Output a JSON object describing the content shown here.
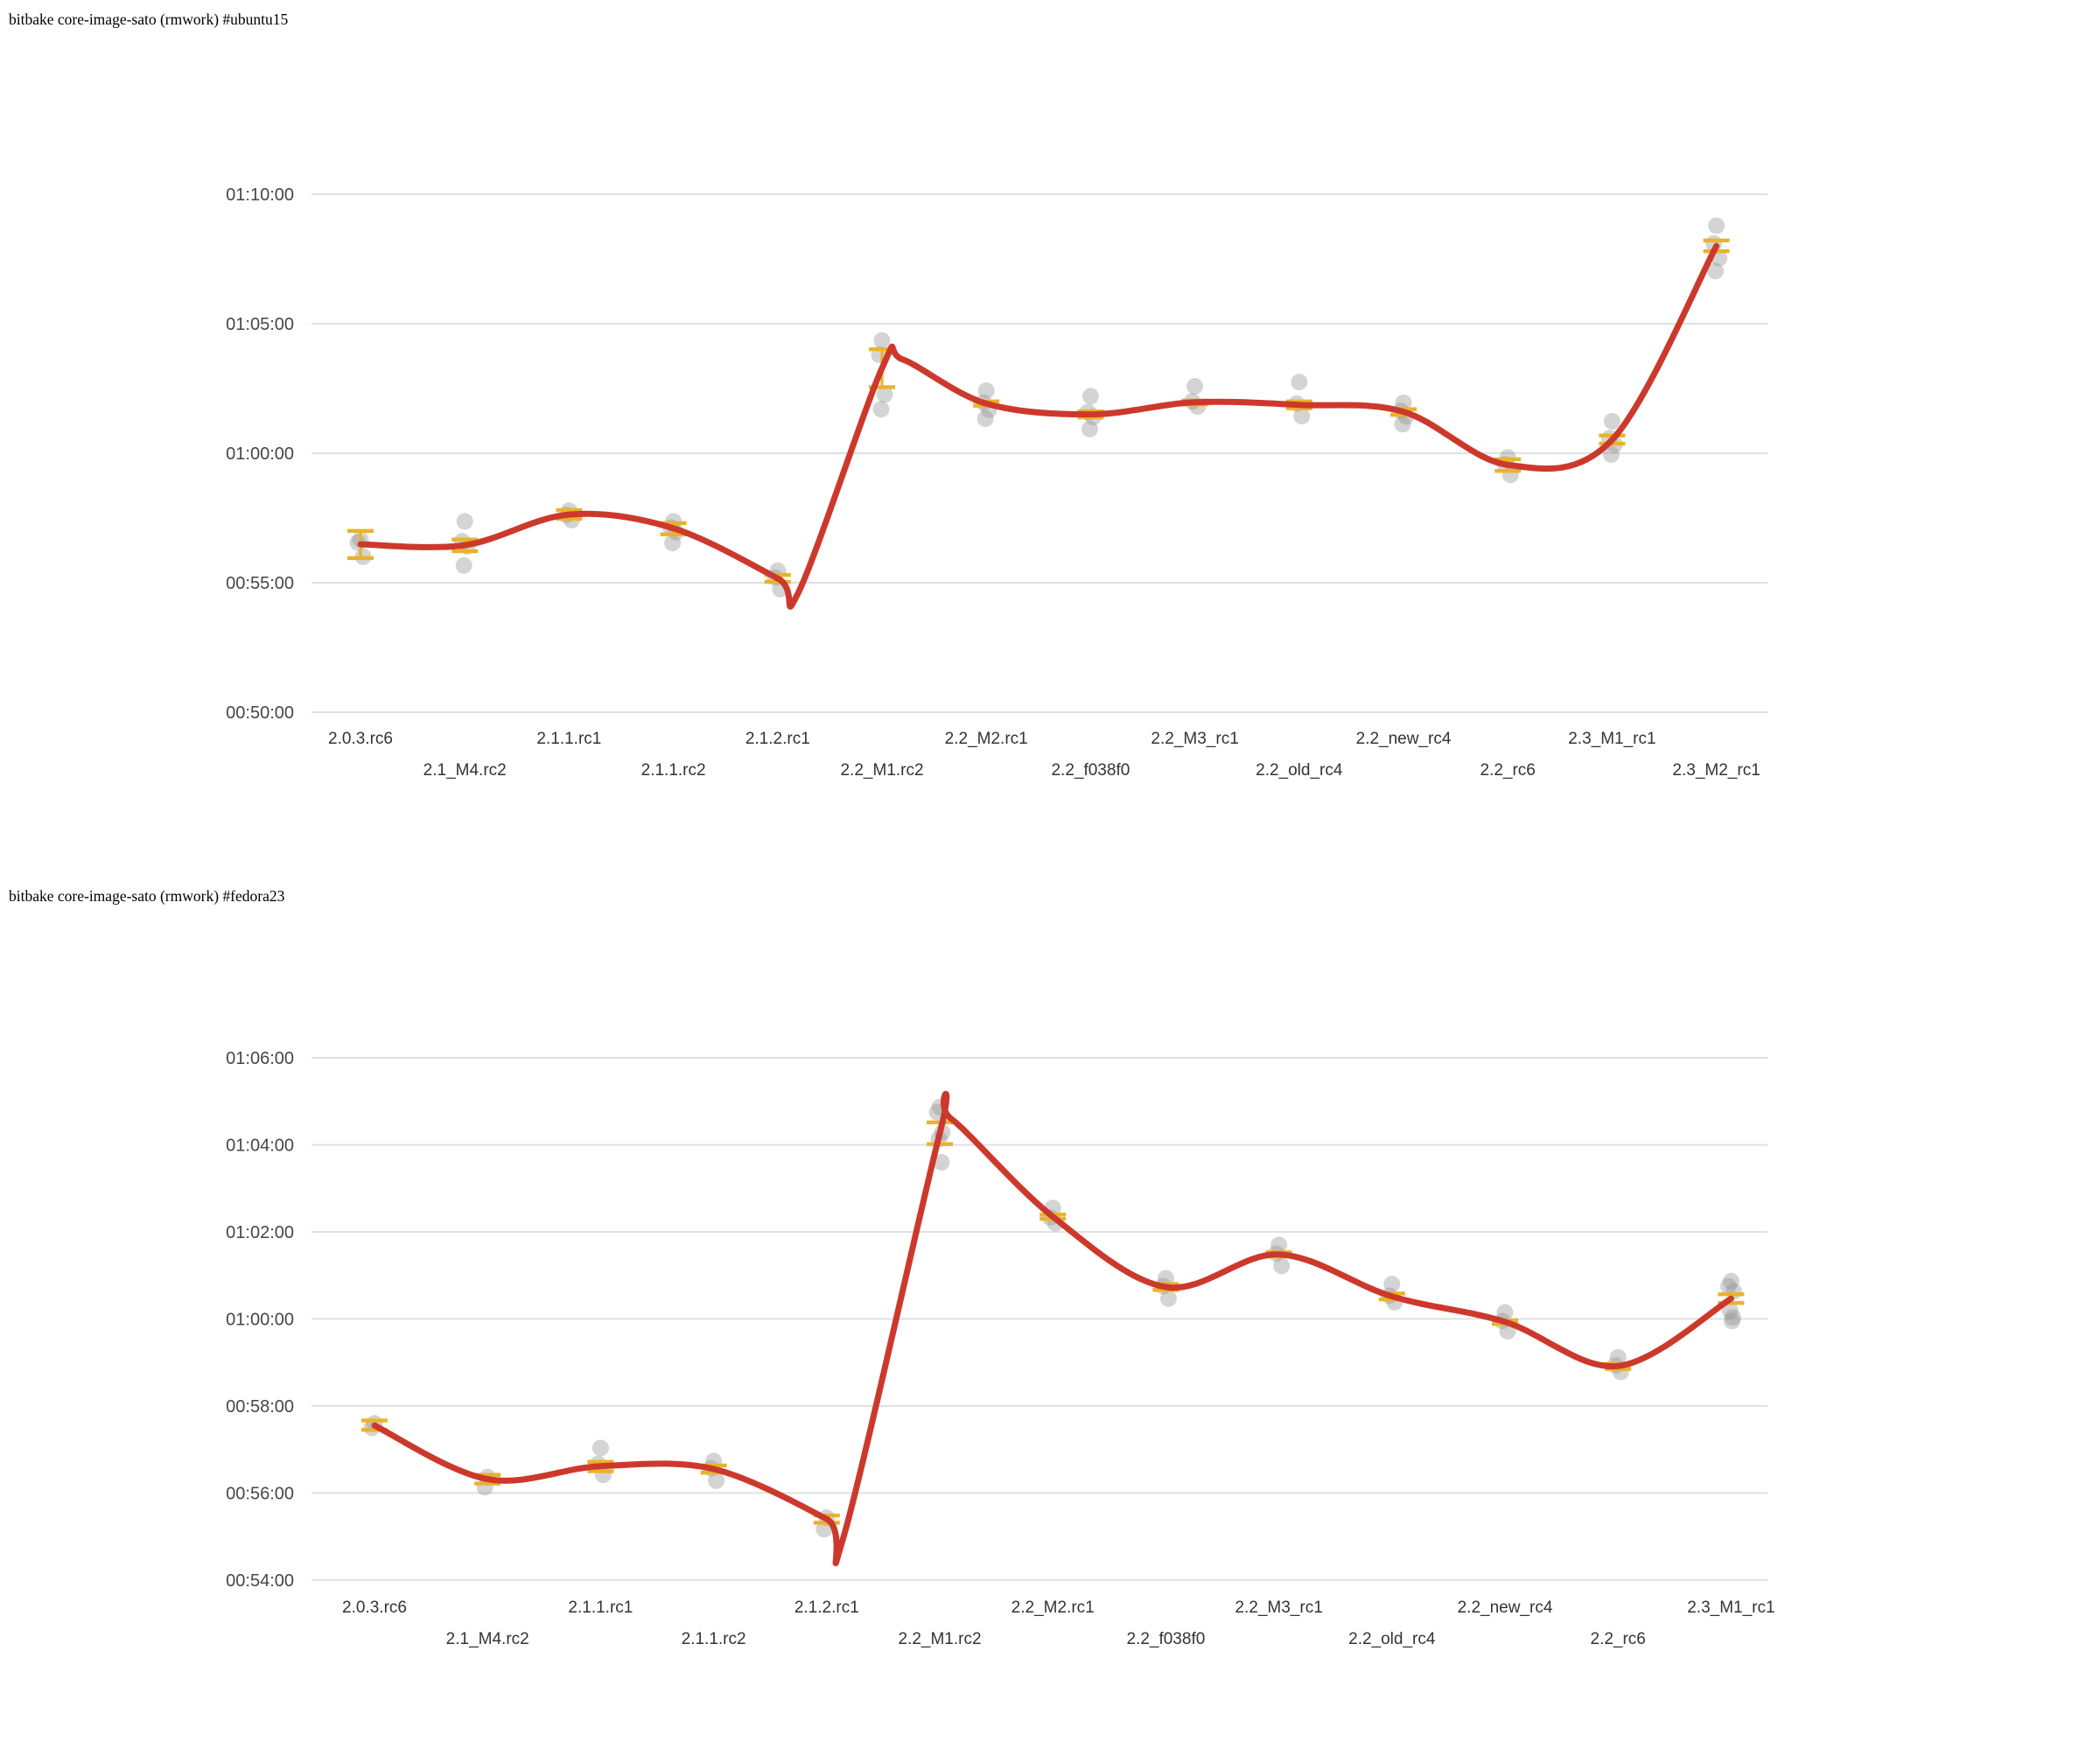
{
  "style": {
    "background": "#ffffff",
    "trend_color": "#cc392c",
    "marker_color": "#e9b32a",
    "sample_color": "#949494",
    "grid_color": "#e0e0e0",
    "ytick_color": "#464646",
    "xtick_color": "#333333",
    "title_color": "#000000"
  },
  "chart_data": [
    {
      "type": "scatter",
      "title": "bitbake core-image-sato (rmwork) #ubuntu15",
      "xlabel": "",
      "ylabel": "",
      "grid": true,
      "legend_position": "none",
      "ylim": [
        "00:50:00",
        "01:10:00"
      ],
      "y_ticks": [
        "01:10:00",
        "01:05:00",
        "01:00:00",
        "00:55:00",
        "00:50:00"
      ],
      "categories": [
        "2.0.3.rc6",
        "2.1_M4.rc2",
        "2.1.1.rc1",
        "2.1.1.rc2",
        "2.1.2.rc1",
        "2.2_M1.rc2",
        "2.2_M2.rc1",
        "2.2_f038f0",
        "2.2_M3_rc1",
        "2.2_old_rc4",
        "2.2_new_rc4",
        "2.2_rc6",
        "2.3_M1_rc1",
        "2.3_M2_rc1"
      ],
      "points": [
        {
          "category": "2.0.3.rc6",
          "median": "00:56:29",
          "upper": "00:57:00",
          "lower": "00:55:57",
          "samples": [
            "00:56:40",
            "00:56:33",
            "00:56:00"
          ]
        },
        {
          "category": "2.1_M4.rc2",
          "median": "00:56:27",
          "upper": "00:56:40",
          "lower": "00:56:13",
          "samples": [
            "00:57:22",
            "00:56:36",
            "00:56:24",
            "00:55:40"
          ]
        },
        {
          "category": "2.1.1.rc1",
          "median": "00:57:38",
          "upper": "00:57:48",
          "lower": "00:57:28",
          "samples": [
            "00:57:47",
            "00:57:37",
            "00:57:25"
          ]
        },
        {
          "category": "2.1.1.rc2",
          "median": "00:57:06",
          "upper": "00:57:18",
          "lower": "00:56:52",
          "samples": [
            "00:57:22",
            "00:57:08",
            "00:56:57",
            "00:56:32"
          ]
        },
        {
          "category": "2.1.2.rc1",
          "median": "00:55:10",
          "upper": "00:55:18",
          "lower": "00:55:02",
          "samples": [
            "00:55:28",
            "00:55:12",
            "00:54:45"
          ]
        },
        {
          "category": "2.2_M1.rc2",
          "median": "01:03:17",
          "upper": "01:04:01",
          "lower": "01:02:33",
          "samples": [
            "01:04:21",
            "01:03:48",
            "01:02:16",
            "01:01:42"
          ]
        },
        {
          "category": "2.2_M2.rc1",
          "median": "01:01:55",
          "upper": "01:02:00",
          "lower": "01:01:50",
          "samples": [
            "01:02:25",
            "01:01:57",
            "01:01:41",
            "01:01:20"
          ]
        },
        {
          "category": "2.2_f038f0",
          "median": "01:01:30",
          "upper": "01:01:37",
          "lower": "01:01:23",
          "samples": [
            "01:02:12",
            "01:01:35",
            "01:01:24",
            "01:00:56"
          ]
        },
        {
          "category": "2.2_M3_rc1",
          "median": "01:01:58",
          "upper": "01:02:02",
          "lower": "01:01:53",
          "samples": [
            "01:02:35",
            "01:02:00",
            "01:01:48"
          ]
        },
        {
          "category": "2.2_old_rc4",
          "median": "01:01:52",
          "upper": "01:02:00",
          "lower": "01:01:44",
          "samples": [
            "01:02:45",
            "01:01:55",
            "01:01:26"
          ]
        },
        {
          "category": "2.2_new_rc4",
          "median": "01:01:36",
          "upper": "01:01:42",
          "lower": "01:01:29",
          "samples": [
            "01:01:57",
            "01:01:38",
            "01:01:25",
            "01:01:07"
          ]
        },
        {
          "category": "2.2_rc6",
          "median": "00:59:33",
          "upper": "00:59:46",
          "lower": "00:59:19",
          "samples": [
            "00:59:50",
            "00:59:34",
            "00:59:10"
          ]
        },
        {
          "category": "2.3_M1_rc1",
          "median": "01:00:31",
          "upper": "01:00:41",
          "lower": "01:00:22",
          "samples": [
            "01:01:14",
            "01:00:35",
            "01:00:20",
            "00:59:57"
          ]
        },
        {
          "category": "2.3_M2_rc1",
          "median": "01:08:00",
          "upper": "01:08:13",
          "lower": "01:07:48",
          "samples": [
            "01:08:47",
            "01:08:06",
            "01:07:32",
            "01:07:02"
          ]
        }
      ],
      "trend_extra_points": [
        {
          "pos": 4.2,
          "time": "00:54:38"
        },
        {
          "pos": 5.2,
          "time": "01:03:37"
        }
      ]
    },
    {
      "type": "scatter",
      "title": "bitbake core-image-sato (rmwork) #fedora23",
      "xlabel": "",
      "ylabel": "",
      "grid": true,
      "legend_position": "none",
      "ylim": [
        "00:54:00",
        "01:06:00"
      ],
      "y_ticks": [
        "01:06:00",
        "01:04:00",
        "01:02:00",
        "01:00:00",
        "00:58:00",
        "00:56:00",
        "00:54:00"
      ],
      "categories": [
        "2.0.3.rc6",
        "2.1_M4.rc2",
        "2.1.1.rc1",
        "2.1.1.rc2",
        "2.1.2.rc1",
        "2.2_M1.rc2",
        "2.2_M2.rc1",
        "2.2_f038f0",
        "2.2_M3_rc1",
        "2.2_old_rc4",
        "2.2_new_rc4",
        "2.2_rc6",
        "2.3_M1_rc1"
      ],
      "points": [
        {
          "category": "2.0.3.rc6",
          "median": "00:57:33",
          "upper": "00:57:40",
          "lower": "00:57:27",
          "samples": [
            "00:57:36",
            "00:57:30"
          ]
        },
        {
          "category": "2.1_M4.rc2",
          "median": "00:56:19",
          "upper": "00:56:25",
          "lower": "00:56:13",
          "samples": [
            "00:56:22",
            "00:56:08"
          ]
        },
        {
          "category": "2.1.1.rc1",
          "median": "00:56:37",
          "upper": "00:56:43",
          "lower": "00:56:30",
          "samples": [
            "00:57:02",
            "00:56:40",
            "00:56:25"
          ]
        },
        {
          "category": "2.1.1.rc2",
          "median": "00:56:33",
          "upper": "00:56:38",
          "lower": "00:56:28",
          "samples": [
            "00:56:44",
            "00:56:34",
            "00:56:17"
          ]
        },
        {
          "category": "2.1.2.rc1",
          "median": "00:55:24",
          "upper": "00:55:29",
          "lower": "00:55:19",
          "samples": [
            "00:55:26",
            "00:55:10"
          ]
        },
        {
          "category": "2.2_M1.rc2",
          "median": "01:04:16",
          "upper": "01:04:31",
          "lower": "01:04:01",
          "samples": [
            "01:04:52",
            "01:04:45",
            "01:04:17",
            "01:04:08",
            "01:03:36"
          ]
        },
        {
          "category": "2.2_M2.rc1",
          "median": "01:02:21",
          "upper": "01:02:24",
          "lower": "01:02:18",
          "samples": [
            "01:02:33",
            "01:02:20",
            "01:02:12"
          ]
        },
        {
          "category": "2.2_f038f0",
          "median": "01:00:44",
          "upper": "01:00:48",
          "lower": "01:00:40",
          "samples": [
            "01:00:56",
            "01:00:45",
            "01:00:28"
          ]
        },
        {
          "category": "2.2_M3_rc1",
          "median": "01:01:29",
          "upper": "01:01:32",
          "lower": "01:01:26",
          "samples": [
            "01:01:42",
            "01:01:30",
            "01:01:13"
          ]
        },
        {
          "category": "2.2_old_rc4",
          "median": "01:00:31",
          "upper": "01:00:35",
          "lower": "01:00:27",
          "samples": [
            "01:00:48",
            "01:00:32",
            "01:00:23"
          ]
        },
        {
          "category": "2.2_new_rc4",
          "median": "00:59:56",
          "upper": "00:59:58",
          "lower": "00:59:53",
          "samples": [
            "01:00:09",
            "00:59:57",
            "00:59:43"
          ]
        },
        {
          "category": "2.2_rc6",
          "median": "00:58:55",
          "upper": "00:58:58",
          "lower": "00:58:51",
          "samples": [
            "00:59:07",
            "00:58:56",
            "00:58:47"
          ]
        },
        {
          "category": "2.3_M1_rc1",
          "median": "01:00:28",
          "upper": "01:00:34",
          "lower": "01:00:22",
          "samples": [
            "01:00:52",
            "01:00:45",
            "01:00:38",
            "01:00:11",
            "01:00:02",
            "00:59:57"
          ]
        }
      ],
      "trend_extra_points": [
        {
          "pos": 4.15,
          "time": "00:55:00"
        },
        {
          "pos": 5.1,
          "time": "01:04:36"
        }
      ]
    }
  ]
}
